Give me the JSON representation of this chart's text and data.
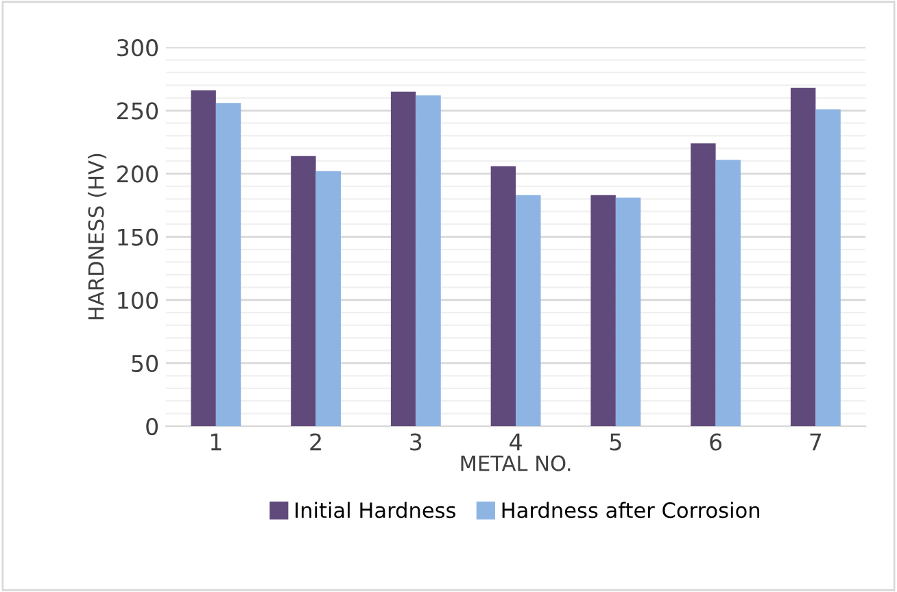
{
  "chart_data": {
    "type": "bar",
    "xlabel": "METAL NO.",
    "ylabel": "HARDNESS (HV)",
    "categories": [
      "1",
      "2",
      "3",
      "4",
      "5",
      "6",
      "7"
    ],
    "series": [
      {
        "name": "Initial Hardness",
        "color": "#604a7b",
        "values": [
          266,
          214,
          265,
          206,
          183,
          224,
          268
        ]
      },
      {
        "name": "Hardness after Corrosion",
        "color": "#8eb4e3",
        "values": [
          256,
          202,
          262,
          183,
          181,
          211,
          251
        ]
      }
    ],
    "ylim": [
      0,
      300
    ],
    "yticks": [
      0,
      50,
      100,
      150,
      200,
      250,
      300
    ],
    "grid": "y",
    "legend": "bottom"
  }
}
